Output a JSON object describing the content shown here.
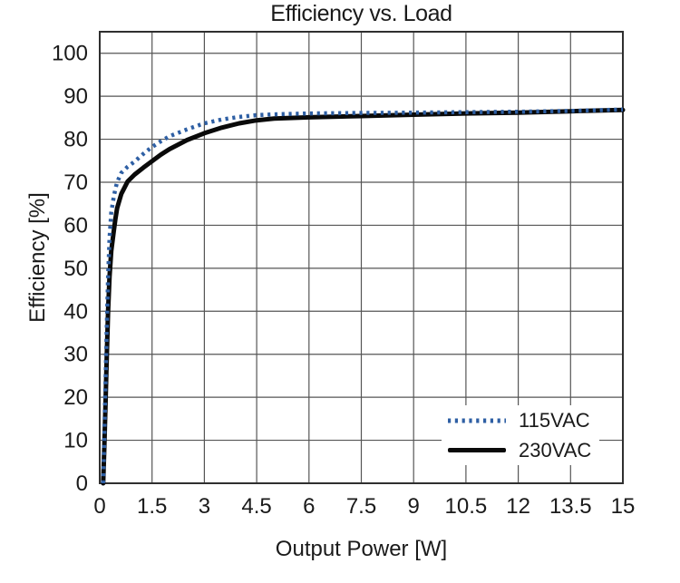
{
  "title": "Efficiency vs. Load",
  "axes": {
    "x_title": "Output Power [W]",
    "y_title": "Efficiency [%]"
  },
  "legend": {
    "items": [
      {
        "label": "115VAC",
        "swatch": "dotted-line"
      },
      {
        "label": "230VAC",
        "swatch": "solid-line"
      }
    ]
  },
  "colors": {
    "series_115vac": "#2e5fa4",
    "series_230vac": "#0a0a0a",
    "gridline": "#555555",
    "plot_border": "#2f2f2f",
    "text": "#1a1a1a",
    "background": "#ffffff"
  },
  "chart_data": {
    "type": "line",
    "title": "Efficiency vs. Load",
    "xlabel": "Output Power [W]",
    "ylabel": "Efficiency [%]",
    "xlim": [
      0,
      15
    ],
    "ylim": [
      0,
      105
    ],
    "grid": true,
    "legend_position": "lower-right",
    "x_ticks": [
      0,
      1.5,
      3,
      4.5,
      6,
      7.5,
      9,
      10.5,
      12,
      13.5,
      15
    ],
    "x_tick_labels": [
      "0",
      "1.5",
      "3",
      "4.5",
      "6",
      "7.5",
      "9",
      "10.5",
      "12",
      "13.5",
      "15"
    ],
    "y_ticks": [
      0,
      10,
      20,
      30,
      40,
      50,
      60,
      70,
      80,
      90,
      100
    ],
    "y_tick_labels": [
      "0",
      "10",
      "20",
      "30",
      "40",
      "50",
      "60",
      "70",
      "80",
      "90",
      "100"
    ],
    "grid_color": "#555555",
    "border_color": "#2f2f2f",
    "series": [
      {
        "name": "115VAC",
        "color": "#2e5fa4",
        "style": "dotted",
        "points": [
          [
            0.1,
            0
          ],
          [
            0.13,
            10
          ],
          [
            0.16,
            22
          ],
          [
            0.2,
            36
          ],
          [
            0.24,
            48
          ],
          [
            0.28,
            57
          ],
          [
            0.33,
            63
          ],
          [
            0.4,
            66.5
          ],
          [
            0.45,
            68.5
          ],
          [
            0.5,
            70
          ],
          [
            0.62,
            72.2
          ],
          [
            0.8,
            73.6
          ],
          [
            1.0,
            74.8
          ],
          [
            1.25,
            76.6
          ],
          [
            1.5,
            78.2
          ],
          [
            1.75,
            79.5
          ],
          [
            2.0,
            80.7
          ],
          [
            2.5,
            82.3
          ],
          [
            3.0,
            83.7
          ],
          [
            3.5,
            84.6
          ],
          [
            4.0,
            85.2
          ],
          [
            4.5,
            85.6
          ],
          [
            5.0,
            85.8
          ],
          [
            6.0,
            86.0
          ],
          [
            7.5,
            86.1
          ],
          [
            9.0,
            86.2
          ],
          [
            10.5,
            86.3
          ],
          [
            12.0,
            86.4
          ],
          [
            13.5,
            86.6
          ],
          [
            15.0,
            86.9
          ]
        ]
      },
      {
        "name": "230VAC",
        "color": "#0a0a0a",
        "style": "solid",
        "points": [
          [
            0.1,
            0
          ],
          [
            0.13,
            8
          ],
          [
            0.16,
            17
          ],
          [
            0.2,
            29
          ],
          [
            0.24,
            40
          ],
          [
            0.28,
            48
          ],
          [
            0.33,
            54
          ],
          [
            0.4,
            58.5
          ],
          [
            0.45,
            61.5
          ],
          [
            0.5,
            64
          ],
          [
            0.62,
            67.3
          ],
          [
            0.8,
            70.2
          ],
          [
            1.0,
            71.8
          ],
          [
            1.25,
            73.4
          ],
          [
            1.5,
            74.9
          ],
          [
            1.75,
            76.4
          ],
          [
            2.0,
            77.7
          ],
          [
            2.5,
            79.8
          ],
          [
            3.0,
            81.4
          ],
          [
            3.5,
            82.7
          ],
          [
            4.0,
            83.7
          ],
          [
            4.5,
            84.4
          ],
          [
            5.0,
            84.8
          ],
          [
            6.0,
            85.1
          ],
          [
            7.5,
            85.4
          ],
          [
            9.0,
            85.7
          ],
          [
            10.5,
            86.0
          ],
          [
            12.0,
            86.2
          ],
          [
            13.5,
            86.5
          ],
          [
            15.0,
            86.8
          ]
        ]
      }
    ]
  }
}
